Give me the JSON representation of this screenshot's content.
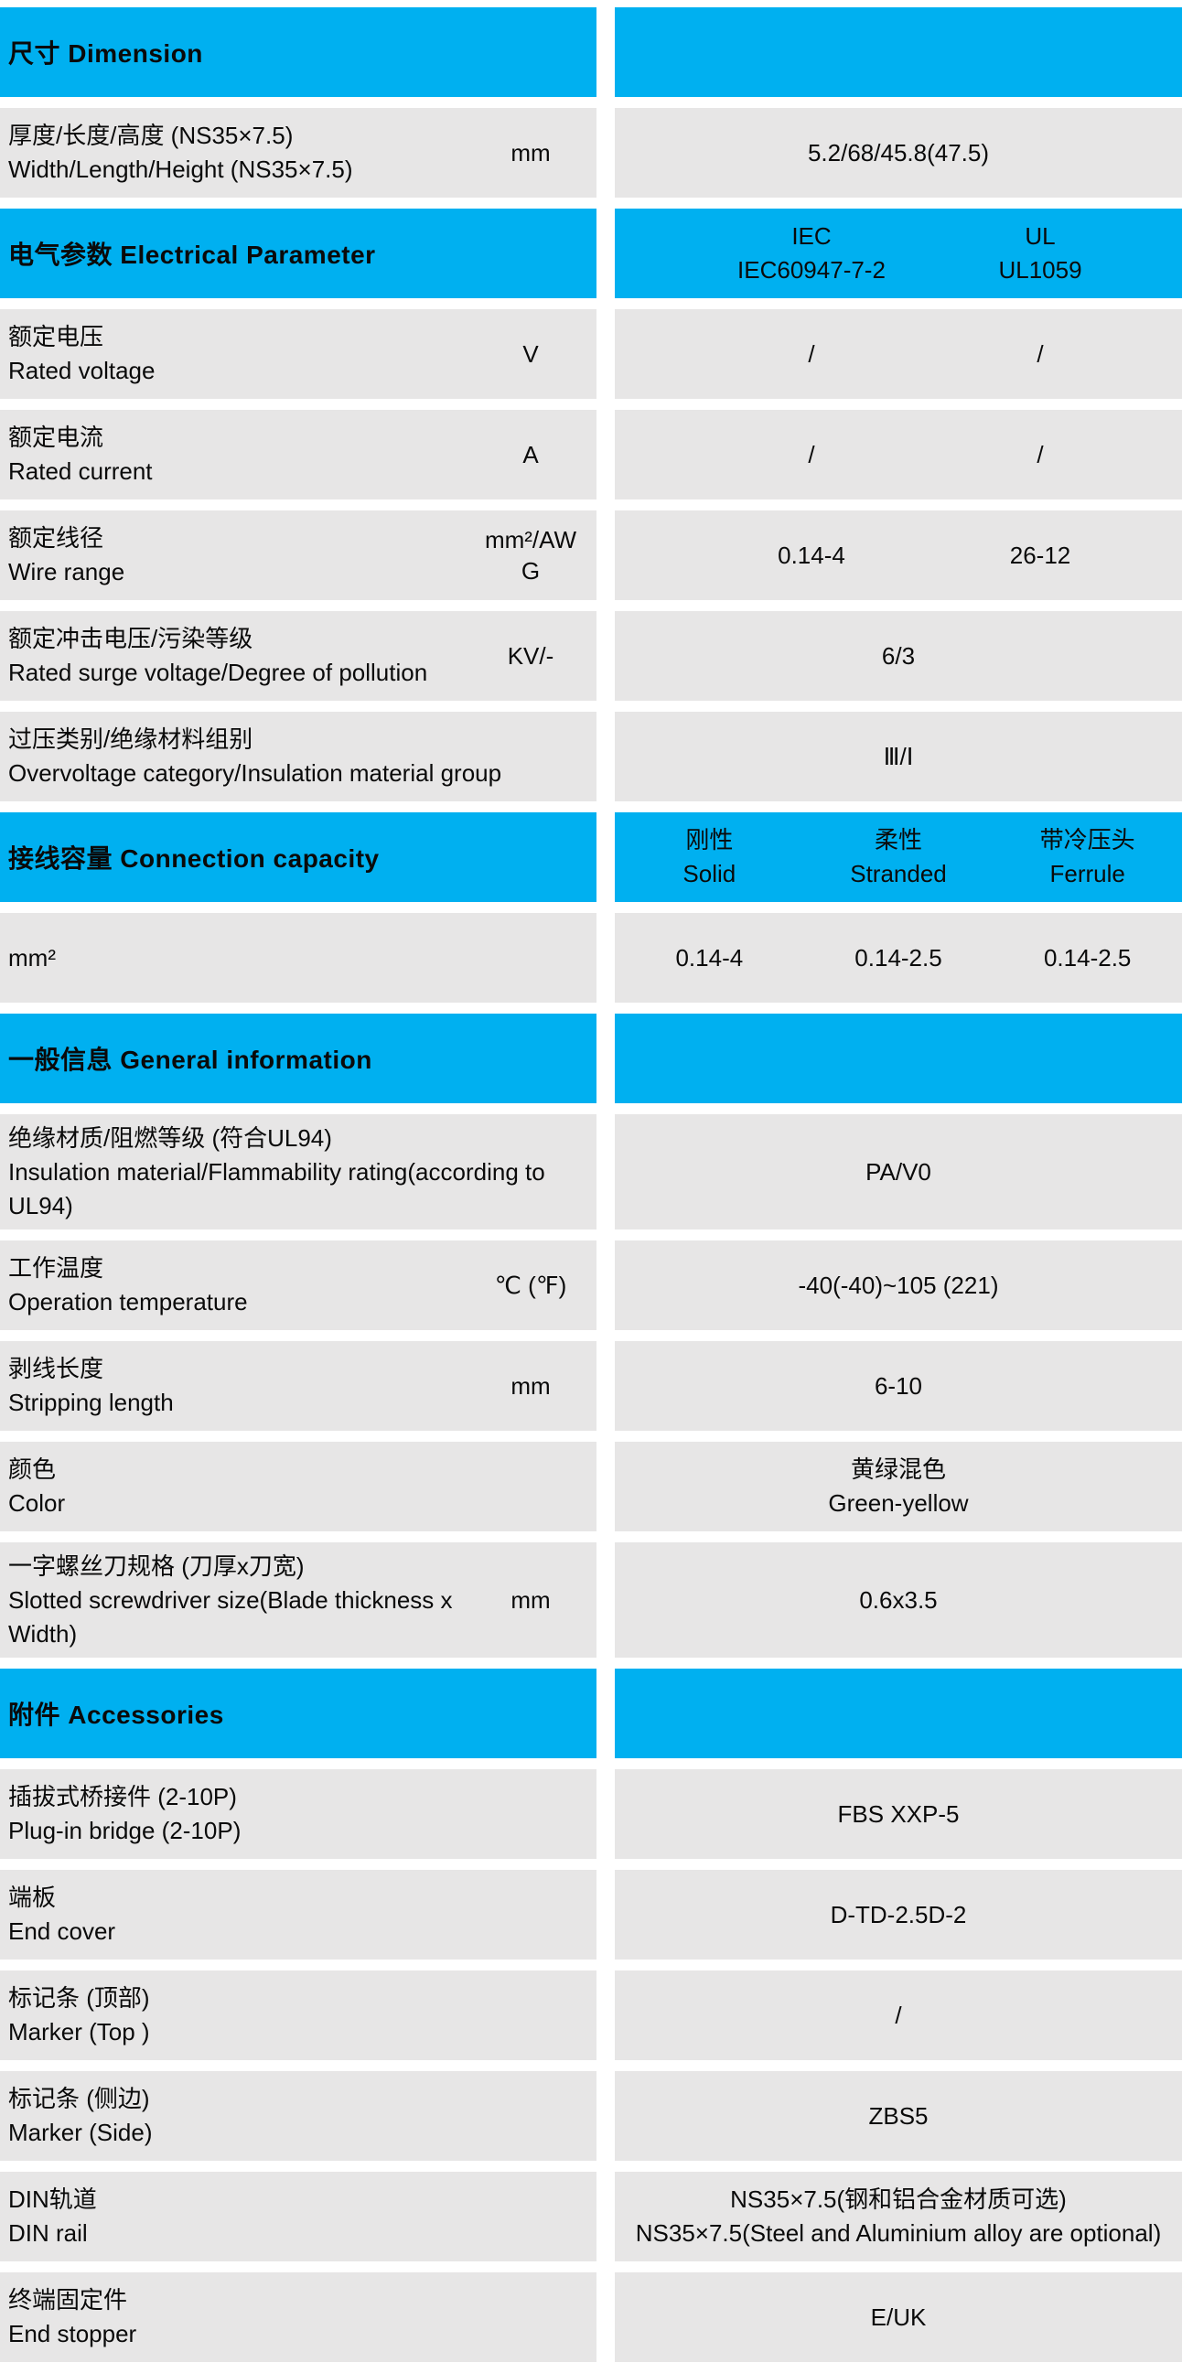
{
  "theme": {
    "accent_color": "#00b0f0",
    "row_background": "#e7e6e6",
    "text_color": "#0a0a0a"
  },
  "rows": [
    {
      "kind": "section",
      "title": "尺寸 Dimension"
    },
    {
      "kind": "data",
      "zh": "厚度/长度/高度 (NS35×7.5)",
      "en": "Width/Length/Height (NS35×7.5)",
      "unit": "mm",
      "value": "5.2/68/45.8(47.5)"
    },
    {
      "kind": "section2",
      "title": "电气参数 Electrical Parameter",
      "cols": [
        {
          "l1": "IEC",
          "l2": "IEC60947-7-2"
        },
        {
          "l1": "UL",
          "l2": "UL1059"
        }
      ]
    },
    {
      "kind": "data2",
      "zh": "额定电压",
      "en": "Rated voltage",
      "unit": "V",
      "values": [
        "/",
        "/"
      ]
    },
    {
      "kind": "data2",
      "zh": "额定电流",
      "en": "Rated current",
      "unit": "A",
      "values": [
        "/",
        "/"
      ]
    },
    {
      "kind": "data2",
      "zh": "额定线径",
      "en": "Wire range",
      "unit": "mm²/AWG",
      "values": [
        "0.14-4",
        "26-12"
      ]
    },
    {
      "kind": "data",
      "zh": "额定冲击电压/污染等级",
      "en": "Rated surge voltage/Degree of pollution",
      "unit": "KV/-",
      "value": "6/3"
    },
    {
      "kind": "data",
      "zh": "过压类别/绝缘材料组别",
      "en": "Overvoltage category/Insulation material group",
      "unit": "",
      "value": "Ⅲ/Ⅰ"
    },
    {
      "kind": "section3",
      "title": "接线容量 Connection capacity",
      "cols": [
        {
          "l1": "刚性",
          "l2": "Solid"
        },
        {
          "l1": "柔性",
          "l2": "Stranded"
        },
        {
          "l1": "带冷压头",
          "l2": "Ferrule"
        }
      ]
    },
    {
      "kind": "data3",
      "zh": "mm²",
      "en": "",
      "unit": "",
      "values": [
        "0.14-4",
        "0.14-2.5",
        "0.14-2.5"
      ]
    },
    {
      "kind": "section",
      "title": "一般信息 General information"
    },
    {
      "kind": "data",
      "zh": "绝缘材质/阻燃等级 (符合UL94)",
      "en": "Insulation material/Flammability rating(according to UL94)",
      "unit": "",
      "value": "PA/V0"
    },
    {
      "kind": "data",
      "zh": "工作温度",
      "en": "Operation temperature",
      "unit": "℃ (℉)",
      "value": "-40(-40)~105 (221)"
    },
    {
      "kind": "data",
      "zh": "剥线长度",
      "en": "Stripping length",
      "unit": "mm",
      "value": "6-10"
    },
    {
      "kind": "data",
      "zh": "颜色",
      "en": "Color",
      "unit": "",
      "value_line1": "黄绿混色",
      "value_line2": "Green-yellow"
    },
    {
      "kind": "data",
      "zh": "一字螺丝刀规格 (刀厚x刀宽)",
      "en": "Slotted screwdriver size(Blade thickness x Width)",
      "unit": "mm",
      "value": "0.6x3.5"
    },
    {
      "kind": "section",
      "title": "附件 Accessories"
    },
    {
      "kind": "data",
      "zh": "插拔式桥接件 (2-10P)",
      "en": "Plug-in bridge (2-10P)",
      "unit": "",
      "value": "FBS XXP-5"
    },
    {
      "kind": "data",
      "zh": "端板",
      "en": "End cover",
      "unit": "",
      "value": "D-TD-2.5D-2"
    },
    {
      "kind": "data",
      "zh": "标记条 (顶部)",
      "en": "Marker (Top )",
      "unit": "",
      "value": "/"
    },
    {
      "kind": "data",
      "zh": "标记条 (侧边)",
      "en": "Marker (Side)",
      "unit": "",
      "value": "ZBS5"
    },
    {
      "kind": "data",
      "zh": "DIN轨道",
      "en": "DIN rail",
      "unit": "",
      "value_line1": "NS35×7.5(钢和铝合金材质可选)",
      "value_line2": "NS35×7.5(Steel and Aluminium alloy are optional)"
    },
    {
      "kind": "data",
      "zh": "终端固定件",
      "en": "End stopper",
      "unit": "",
      "value": "E/UK"
    }
  ]
}
